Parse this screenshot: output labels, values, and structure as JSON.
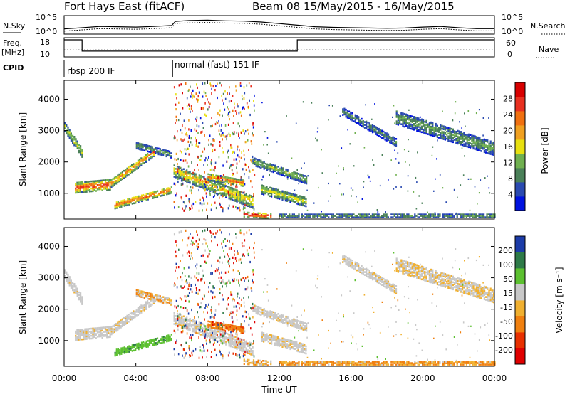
{
  "chart_data": {
    "type": "heatmap",
    "title": "Fort Hays East (fitACF)",
    "beam_label": "Beam 08  15/May/2015 - 16/May/2015",
    "xlabel": "Time UT",
    "x_ticks": [
      "00:00",
      "04:00",
      "08:00",
      "12:00",
      "16:00",
      "20:00",
      "00:00"
    ],
    "x_tick_hours": [
      0,
      4,
      8,
      12,
      16,
      20,
      24
    ],
    "xlim_hours": [
      0,
      24
    ],
    "noise_panel": {
      "left_label": "N.Sky",
      "right_label": "N.Search",
      "left_ticks": [
        "10^5",
        "10^0"
      ],
      "right_ticks": [
        "10^5",
        "10^0"
      ],
      "sky_profile": [
        [
          0,
          1.2
        ],
        [
          1,
          1.6
        ],
        [
          2,
          2.0
        ],
        [
          3,
          1.9
        ],
        [
          4,
          1.8
        ],
        [
          5,
          2.0
        ],
        [
          6,
          2.3
        ],
        [
          6.2,
          3.6
        ],
        [
          7,
          3.9
        ],
        [
          8,
          4.0
        ],
        [
          9,
          3.8
        ],
        [
          10,
          3.7
        ],
        [
          11,
          3.4
        ],
        [
          12,
          2.9
        ],
        [
          13,
          2.4
        ],
        [
          14,
          1.9
        ],
        [
          15,
          1.7
        ],
        [
          16,
          1.6
        ],
        [
          17,
          1.5
        ],
        [
          18,
          1.4
        ],
        [
          19,
          1.5
        ],
        [
          20,
          1.8
        ],
        [
          21,
          2.0
        ],
        [
          22,
          1.6
        ],
        [
          23,
          1.3
        ],
        [
          24,
          1.3
        ]
      ]
    },
    "freq_panel": {
      "left_label": "Freq.",
      "left_unit": "[MHz]",
      "left_ticks": [
        "18",
        "10"
      ],
      "right_label": "Nave",
      "right_ticks": [
        "60",
        "0"
      ],
      "frequency_mhz": [
        [
          0,
          18
        ],
        [
          1,
          18
        ],
        [
          1,
          10.5
        ],
        [
          13,
          10.5
        ],
        [
          13,
          18
        ],
        [
          24,
          18
        ]
      ],
      "nave": [
        [
          0,
          22
        ],
        [
          24,
          22
        ]
      ]
    },
    "cpid": {
      "label": "CPID",
      "segments": [
        {
          "start_hour": 0,
          "name": "rbsp 200 IF"
        },
        {
          "start_hour": 6.05,
          "name": "normal (fast) 151 IF"
        }
      ]
    },
    "power_panel": {
      "ylabel": "Slant Range [km]",
      "y_ticks": [
        1000,
        2000,
        3000,
        4000
      ],
      "ylim": [
        180,
        4600
      ],
      "colorbar_label": "Power [dB]",
      "colorbar_ticks": [
        "4",
        "8",
        "12",
        "16",
        "20",
        "24",
        "28"
      ],
      "colorbar_range": [
        0,
        30
      ],
      "colors": [
        "#0012e0",
        "#2a4ab0",
        "#4a8058",
        "#70b050",
        "#e8e010",
        "#f0a020",
        "#f07010",
        "#e83020",
        "#d80000"
      ]
    },
    "velocity_panel": {
      "ylabel": "Slant Range [km]",
      "y_ticks": [
        1000,
        2000,
        3000,
        4000
      ],
      "ylim": [
        180,
        4600
      ],
      "colorbar_label": "Velocity [m s⁻¹]",
      "colorbar_ticks": [
        "200",
        "100",
        "50",
        "15",
        "-15",
        "-50",
        "-100",
        "-200"
      ],
      "colors": [
        "#1c3ca8",
        "#2e7a48",
        "#5cc030",
        "#c8c8c8",
        "#f0b030",
        "#f08010",
        "#e83000",
        "#e00000"
      ]
    },
    "echo_regions": [
      {
        "t0": 0.0,
        "t1": 1.0,
        "r0": 3100,
        "r1": 2250,
        "width": 300,
        "power": 14,
        "vel": 0
      },
      {
        "t0": 0.6,
        "t1": 2.6,
        "r0": 1150,
        "r1": 1250,
        "width": 320,
        "power": 24,
        "vel": 0
      },
      {
        "t0": 2.6,
        "t1": 5.0,
        "r0": 1300,
        "r1": 2300,
        "width": 260,
        "power": 20,
        "vel": 0
      },
      {
        "t0": 4.0,
        "t1": 6.0,
        "r0": 2500,
        "r1": 2200,
        "width": 200,
        "power": 10,
        "vel": -20
      },
      {
        "t0": 2.8,
        "t1": 6.0,
        "r0": 600,
        "r1": 1100,
        "width": 220,
        "power": 22,
        "vel": 60
      },
      {
        "t0": 6.1,
        "t1": 10.5,
        "r0": 1700,
        "r1": 700,
        "width": 400,
        "power": 16,
        "vel": 0
      },
      {
        "t0": 8.0,
        "t1": 10.0,
        "r0": 1500,
        "r1": 1300,
        "width": 200,
        "power": 22,
        "vel": -60
      },
      {
        "t0": 10.0,
        "t1": 11.5,
        "r0": 300,
        "r1": 250,
        "width": 150,
        "power": 28,
        "vel": -20
      },
      {
        "t0": 10.5,
        "t1": 13.5,
        "r0": 2000,
        "r1": 1400,
        "width": 250,
        "power": 12,
        "vel": 0
      },
      {
        "t0": 11.0,
        "t1": 13.5,
        "r0": 1100,
        "r1": 700,
        "width": 300,
        "power": 14,
        "vel": 0
      },
      {
        "t0": 15.5,
        "t1": 18.5,
        "r0": 3600,
        "r1": 2600,
        "width": 260,
        "power": 8,
        "vel": 0
      },
      {
        "t0": 18.5,
        "t1": 24.0,
        "r0": 3400,
        "r1": 2400,
        "width": 450,
        "power": 10,
        "vel": -10
      },
      {
        "t0": 12.0,
        "t1": 24.0,
        "r0": 250,
        "r1": 250,
        "width": 180,
        "power": 8,
        "vel": -30
      }
    ]
  }
}
